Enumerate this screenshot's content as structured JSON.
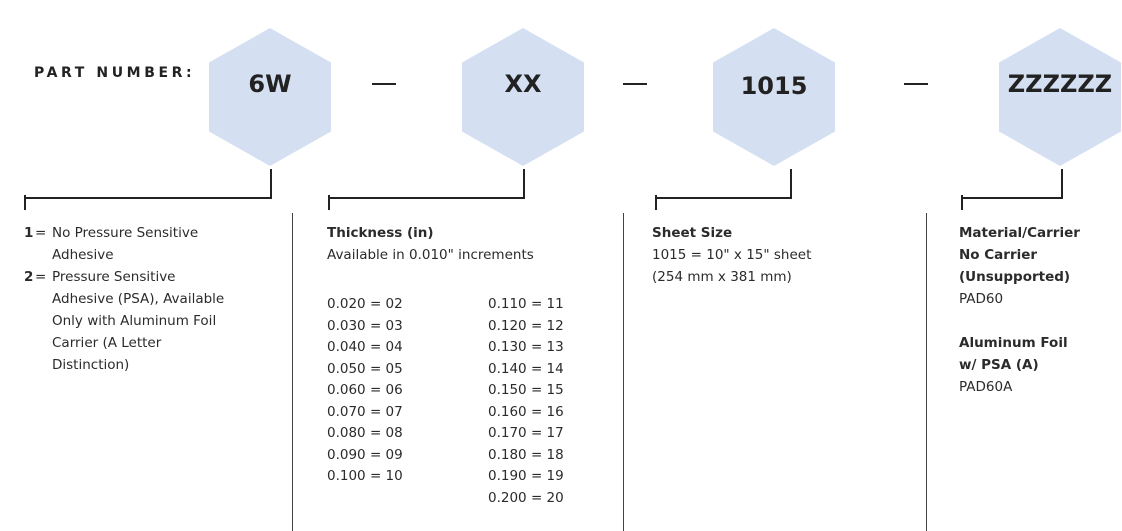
{
  "part_number_label": "PART NUMBER:",
  "segments": [
    "6W",
    "XX",
    "1015",
    "ZZZZZZ"
  ],
  "dash_symbol": "—",
  "hex_fill": "#d4e0f1",
  "psa_column": {
    "options": [
      {
        "code": "1",
        "text": [
          "No Pressure Sensitive",
          "Adhesive"
        ]
      },
      {
        "code": "2",
        "text": [
          "Pressure Sensitive",
          "Adhesive (PSA), Available",
          "Only with Aluminum Foil",
          "Carrier (A Letter",
          "Distinction)"
        ]
      }
    ]
  },
  "thickness_column": {
    "heading": "Thickness (in)",
    "subheading": "Available in 0.010\" increments",
    "left": [
      "0.020 = 02",
      "0.030 = 03",
      "0.040 = 04",
      "0.050 = 05",
      "0.060 = 06",
      "0.070 = 07",
      "0.080 = 08",
      "0.090 = 09",
      "0.100 = 10"
    ],
    "right": [
      "0.110 = 11",
      "0.120 = 12",
      "0.130 = 13",
      "0.140 = 14",
      "0.150 = 15",
      "0.160 = 16",
      "0.170 = 17",
      "0.180 = 18",
      "0.190 = 19",
      "0.200 = 20"
    ]
  },
  "sheet_column": {
    "heading": "Sheet Size",
    "line1": "1015 = 10\" x 15\" sheet",
    "line2": "(254 mm x 381 mm)"
  },
  "material_column": {
    "heading": "Material/Carrier",
    "group1": {
      "title1": "No Carrier",
      "title2": "(Unsupported)",
      "code": "PAD60"
    },
    "group2": {
      "title1": "Aluminum Foil",
      "title2": "w/ PSA (A)",
      "code": "PAD60A"
    }
  }
}
